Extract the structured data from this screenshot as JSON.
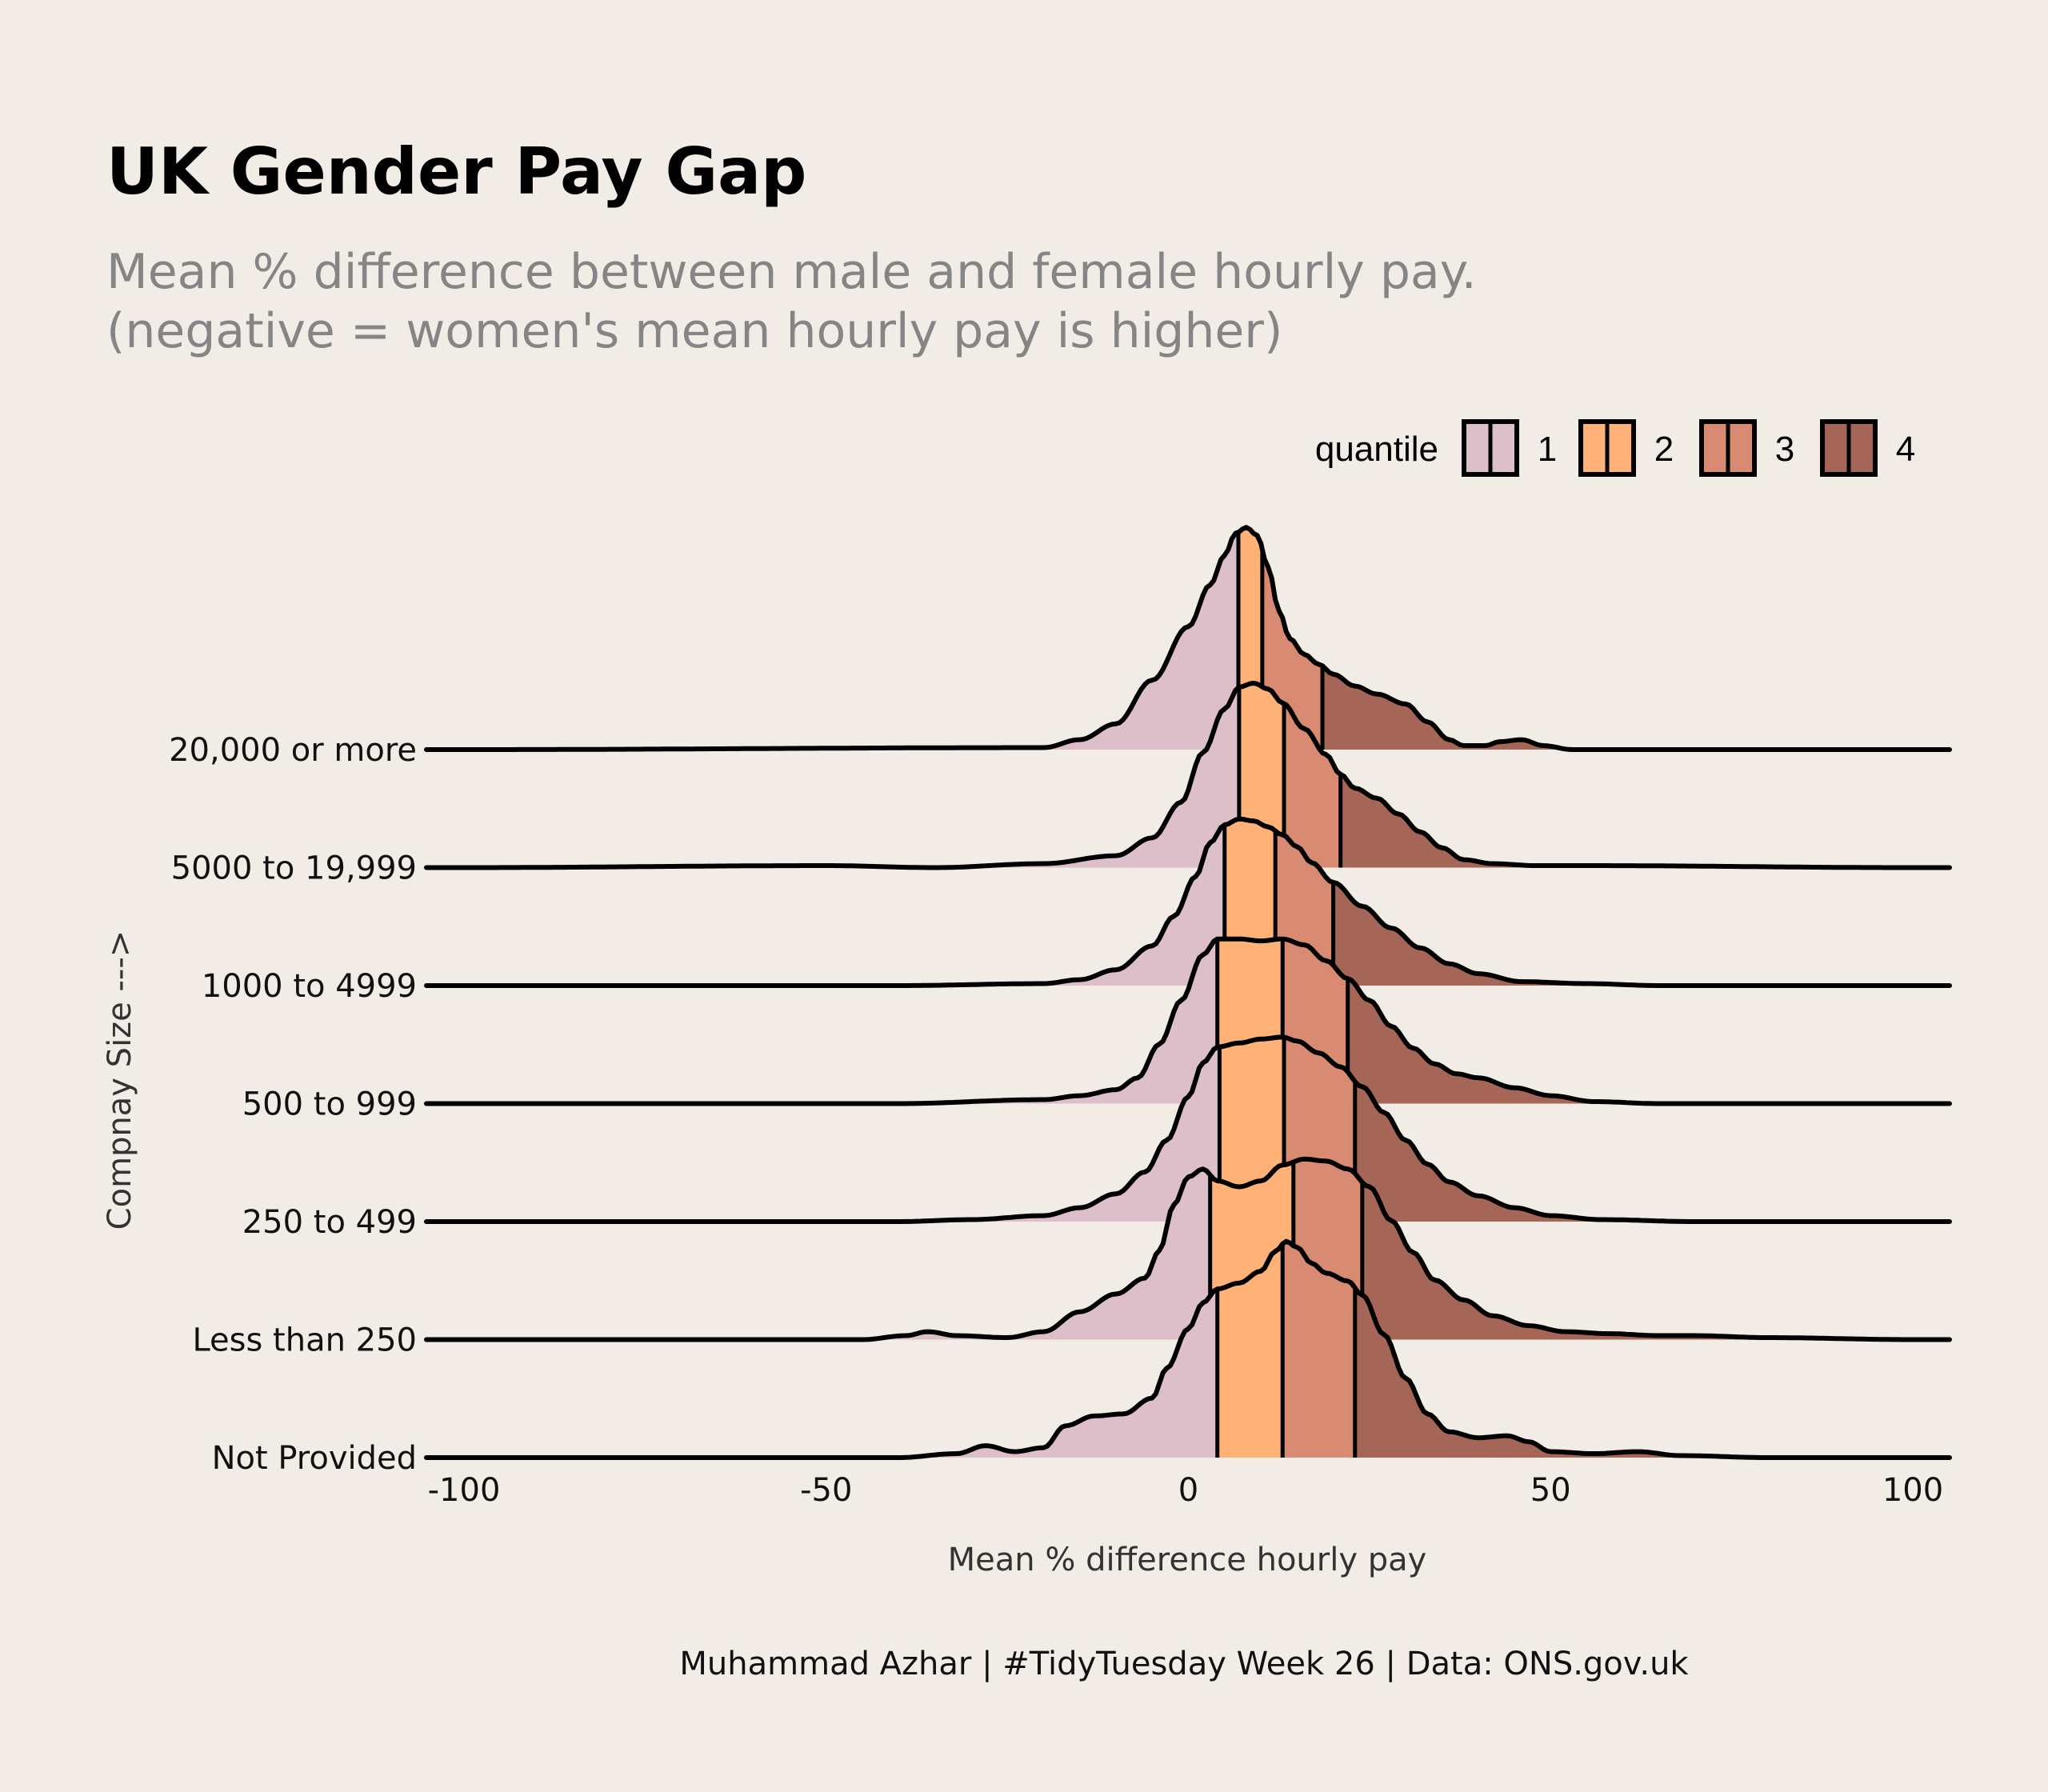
{
  "chart_data": {
    "type": "ridgeline-density",
    "title": "UK Gender Pay Gap",
    "subtitle": [
      "Mean % difference between male and female hourly pay.",
      "(negative = women's mean hourly pay is higher)"
    ],
    "xlabel": "Mean % difference hourly pay",
    "ylabel": "Compnay Size --->",
    "caption": "Muhammad Azhar | #TidyTuesday Week 26 | Data: ONS.gov.uk",
    "xlim": [
      -100,
      100
    ],
    "x_ticks": [
      -100,
      -50,
      0,
      50,
      100
    ],
    "x_tick_labels": [
      "-100",
      "-50",
      "0",
      "50",
      "100"
    ],
    "legend": {
      "title": "quantile",
      "position": "top-right",
      "items": [
        {
          "label": "1",
          "color": "#dcbfc8"
        },
        {
          "label": "2",
          "color": "#ffb278"
        },
        {
          "label": "3",
          "color": "#d98a72"
        },
        {
          "label": "4",
          "color": "#a56657"
        }
      ]
    },
    "series": [
      {
        "category": "20,000 or more",
        "quantiles": [
          6.9,
          10.2,
          18.5
        ],
        "density": [
          [
            -100,
            0
          ],
          [
            -20,
            0.01
          ],
          [
            -15,
            0.05
          ],
          [
            -10,
            0.13
          ],
          [
            -5,
            0.35
          ],
          [
            0,
            0.62
          ],
          [
            3,
            0.83
          ],
          [
            5,
            0.98
          ],
          [
            6.5,
            1.09
          ],
          [
            8,
            1.12
          ],
          [
            9.5,
            1.08
          ],
          [
            11,
            0.92
          ],
          [
            12.5,
            0.7
          ],
          [
            14,
            0.56
          ],
          [
            16,
            0.48
          ],
          [
            18,
            0.43
          ],
          [
            20,
            0.38
          ],
          [
            23,
            0.32
          ],
          [
            26,
            0.28
          ],
          [
            30,
            0.23
          ],
          [
            33,
            0.14
          ],
          [
            36,
            0.05
          ],
          [
            38,
            0.02
          ],
          [
            41,
            0.02
          ],
          [
            43,
            0.04
          ],
          [
            46,
            0.05
          ],
          [
            49,
            0.02
          ],
          [
            53,
            0
          ],
          [
            100,
            0
          ]
        ]
      },
      {
        "category": "5000 to 19,999",
        "quantiles": [
          7.0,
          13.2,
          21.0
        ],
        "density": [
          [
            -100,
            0
          ],
          [
            -50,
            0.01
          ],
          [
            -35,
            0
          ],
          [
            -20,
            0.02
          ],
          [
            -10,
            0.06
          ],
          [
            -5,
            0.15
          ],
          [
            -1,
            0.33
          ],
          [
            2,
            0.58
          ],
          [
            5,
            0.8
          ],
          [
            7,
            0.91
          ],
          [
            9,
            0.93
          ],
          [
            11,
            0.9
          ],
          [
            13,
            0.83
          ],
          [
            16,
            0.7
          ],
          [
            19,
            0.57
          ],
          [
            21,
            0.47
          ],
          [
            23,
            0.4
          ],
          [
            26,
            0.35
          ],
          [
            29,
            0.27
          ],
          [
            32,
            0.18
          ],
          [
            35,
            0.1
          ],
          [
            38,
            0.04
          ],
          [
            42,
            0.02
          ],
          [
            48,
            0.01
          ],
          [
            55,
            0.01
          ],
          [
            100,
            0
          ]
        ]
      },
      {
        "category": "1000 to 4999",
        "quantiles": [
          5.0,
          12.0,
          20.0
        ],
        "density": [
          [
            -100,
            0
          ],
          [
            -40,
            0
          ],
          [
            -20,
            0.01
          ],
          [
            -15,
            0.03
          ],
          [
            -10,
            0.08
          ],
          [
            -5,
            0.2
          ],
          [
            -2,
            0.35
          ],
          [
            1,
            0.55
          ],
          [
            3,
            0.72
          ],
          [
            5,
            0.81
          ],
          [
            7,
            0.84
          ],
          [
            9,
            0.83
          ],
          [
            11,
            0.8
          ],
          [
            13,
            0.76
          ],
          [
            15,
            0.7
          ],
          [
            17,
            0.62
          ],
          [
            20,
            0.52
          ],
          [
            24,
            0.4
          ],
          [
            28,
            0.29
          ],
          [
            32,
            0.19
          ],
          [
            36,
            0.11
          ],
          [
            40,
            0.06
          ],
          [
            46,
            0.02
          ],
          [
            55,
            0.01
          ],
          [
            65,
            0
          ],
          [
            100,
            0
          ]
        ]
      },
      {
        "category": "500 to 999",
        "quantiles": [
          4.0,
          13.0,
          22.0
        ],
        "density": [
          [
            -100,
            0
          ],
          [
            -40,
            0
          ],
          [
            -20,
            0.02
          ],
          [
            -15,
            0.04
          ],
          [
            -10,
            0.07
          ],
          [
            -7,
            0.13
          ],
          [
            -4,
            0.3
          ],
          [
            -1,
            0.52
          ],
          [
            2,
            0.75
          ],
          [
            4,
            0.83
          ],
          [
            7,
            0.83
          ],
          [
            10,
            0.82
          ],
          [
            13,
            0.83
          ],
          [
            16,
            0.8
          ],
          [
            19,
            0.72
          ],
          [
            22,
            0.63
          ],
          [
            25,
            0.52
          ],
          [
            28,
            0.39
          ],
          [
            31,
            0.28
          ],
          [
            34,
            0.2
          ],
          [
            37,
            0.15
          ],
          [
            40,
            0.13
          ],
          [
            45,
            0.08
          ],
          [
            50,
            0.04
          ],
          [
            56,
            0.01
          ],
          [
            65,
            0
          ],
          [
            100,
            0
          ]
        ]
      },
      {
        "category": "250 to 499",
        "quantiles": [
          4.3,
          13.2,
          23.0
        ],
        "density": [
          [
            -100,
            0
          ],
          [
            -40,
            0
          ],
          [
            -30,
            0.01
          ],
          [
            -20,
            0.03
          ],
          [
            -15,
            0.07
          ],
          [
            -10,
            0.14
          ],
          [
            -6,
            0.25
          ],
          [
            -3,
            0.41
          ],
          [
            0,
            0.63
          ],
          [
            2,
            0.8
          ],
          [
            4,
            0.88
          ],
          [
            7,
            0.9
          ],
          [
            10,
            0.92
          ],
          [
            13,
            0.93
          ],
          [
            15,
            0.91
          ],
          [
            18,
            0.85
          ],
          [
            21,
            0.78
          ],
          [
            24,
            0.68
          ],
          [
            27,
            0.55
          ],
          [
            30,
            0.41
          ],
          [
            33,
            0.29
          ],
          [
            36,
            0.2
          ],
          [
            40,
            0.13
          ],
          [
            45,
            0.07
          ],
          [
            50,
            0.03
          ],
          [
            57,
            0.01
          ],
          [
            70,
            0
          ],
          [
            100,
            0
          ]
        ]
      },
      {
        "category": "Less than 250",
        "quantiles": [
          3.0,
          14.5,
          24.0
        ],
        "density": [
          [
            -100,
            0
          ],
          [
            -45,
            0
          ],
          [
            -39,
            0.02
          ],
          [
            -36,
            0.04
          ],
          [
            -32,
            0.02
          ],
          [
            -25,
            0.01
          ],
          [
            -20,
            0.04
          ],
          [
            -15,
            0.14
          ],
          [
            -10,
            0.23
          ],
          [
            -6,
            0.31
          ],
          [
            -4,
            0.45
          ],
          [
            -2,
            0.68
          ],
          [
            0,
            0.82
          ],
          [
            2,
            0.86
          ],
          [
            4,
            0.8
          ],
          [
            7,
            0.77
          ],
          [
            10,
            0.8
          ],
          [
            13,
            0.88
          ],
          [
            16,
            0.91
          ],
          [
            19,
            0.9
          ],
          [
            22,
            0.86
          ],
          [
            25,
            0.77
          ],
          [
            28,
            0.6
          ],
          [
            31,
            0.44
          ],
          [
            34,
            0.3
          ],
          [
            38,
            0.2
          ],
          [
            42,
            0.12
          ],
          [
            47,
            0.07
          ],
          [
            52,
            0.04
          ],
          [
            58,
            0.03
          ],
          [
            65,
            0.02
          ],
          [
            70,
            0.02
          ],
          [
            80,
            0.01
          ],
          [
            100,
            0
          ]
        ]
      },
      {
        "category": "Not Provided",
        "quantiles": [
          4.0,
          13.0,
          23.0
        ],
        "density": [
          [
            -100,
            0
          ],
          [
            -40,
            0
          ],
          [
            -32,
            0.02
          ],
          [
            -28,
            0.06
          ],
          [
            -24,
            0.03
          ],
          [
            -20,
            0.05
          ],
          [
            -17,
            0.16
          ],
          [
            -13,
            0.21
          ],
          [
            -9,
            0.22
          ],
          [
            -5,
            0.3
          ],
          [
            -3,
            0.45
          ],
          [
            0,
            0.65
          ],
          [
            2,
            0.78
          ],
          [
            4,
            0.85
          ],
          [
            7,
            0.88
          ],
          [
            10,
            0.94
          ],
          [
            12,
            1.04
          ],
          [
            13.5,
            1.09
          ],
          [
            15,
            1.06
          ],
          [
            17,
            0.98
          ],
          [
            19,
            0.93
          ],
          [
            22,
            0.89
          ],
          [
            24,
            0.82
          ],
          [
            27,
            0.62
          ],
          [
            30,
            0.4
          ],
          [
            33,
            0.22
          ],
          [
            36,
            0.13
          ],
          [
            40,
            0.1
          ],
          [
            44,
            0.11
          ],
          [
            47,
            0.08
          ],
          [
            50,
            0.03
          ],
          [
            56,
            0.02
          ],
          [
            62,
            0.03
          ],
          [
            68,
            0.01
          ],
          [
            80,
            0
          ],
          [
            100,
            0
          ]
        ]
      }
    ]
  }
}
